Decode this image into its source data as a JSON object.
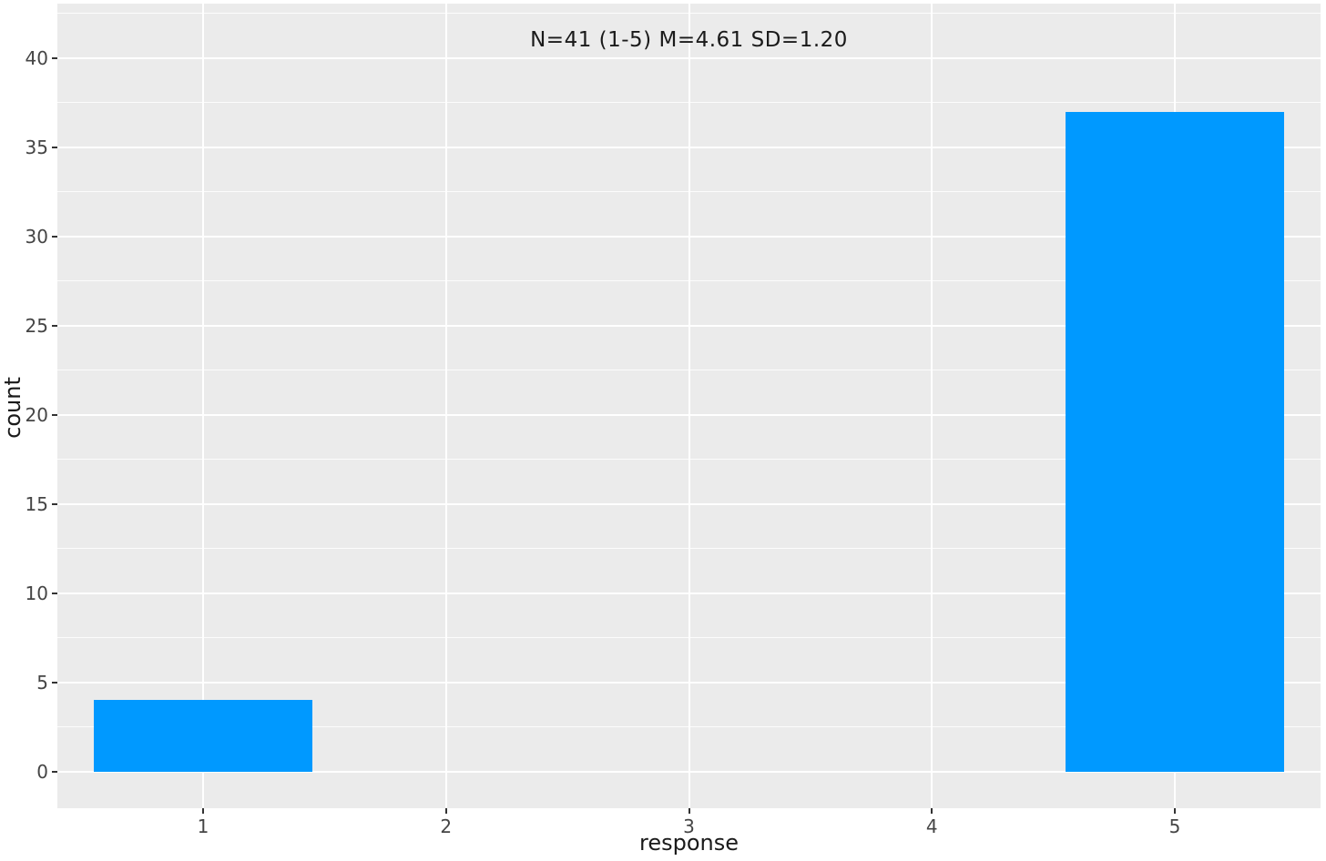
{
  "figure": {
    "background": "#FFFFFF",
    "panel_background": "#EBEBEB",
    "grid_color": "#FFFFFF",
    "tick_mark_color": "#333333",
    "tick_label_color": "#454545",
    "title_color": "#1A1A1A"
  },
  "chart_data": {
    "type": "bar",
    "title": "N=41 (1-5) M=4.61 SD=1.20",
    "xlabel": "response",
    "ylabel": "count",
    "categories": [
      1,
      2,
      3,
      4,
      5
    ],
    "values": [
      4,
      0,
      0,
      0,
      37
    ],
    "bar_color": "#0099FF",
    "bar_width": 0.9,
    "x_tick_labels": [
      "1",
      "2",
      "3",
      "4",
      "5"
    ],
    "x_tick_positions": [
      1,
      2,
      3,
      4,
      5
    ],
    "y_tick_labels": [
      "0",
      "5",
      "10",
      "15",
      "20",
      "25",
      "30",
      "35",
      "40"
    ],
    "y_major_breaks": [
      0,
      5,
      10,
      15,
      20,
      25,
      30,
      35,
      40
    ],
    "y_minor_breaks": [
      2.5,
      7.5,
      12.5,
      17.5,
      22.5,
      27.5,
      32.5,
      37.5,
      42.5
    ],
    "xlim": [
      0.4,
      5.6
    ],
    "ylim": [
      -2.05,
      43.05
    ],
    "grid": "horizontal major+minor, vertical major only",
    "legend": "none"
  }
}
